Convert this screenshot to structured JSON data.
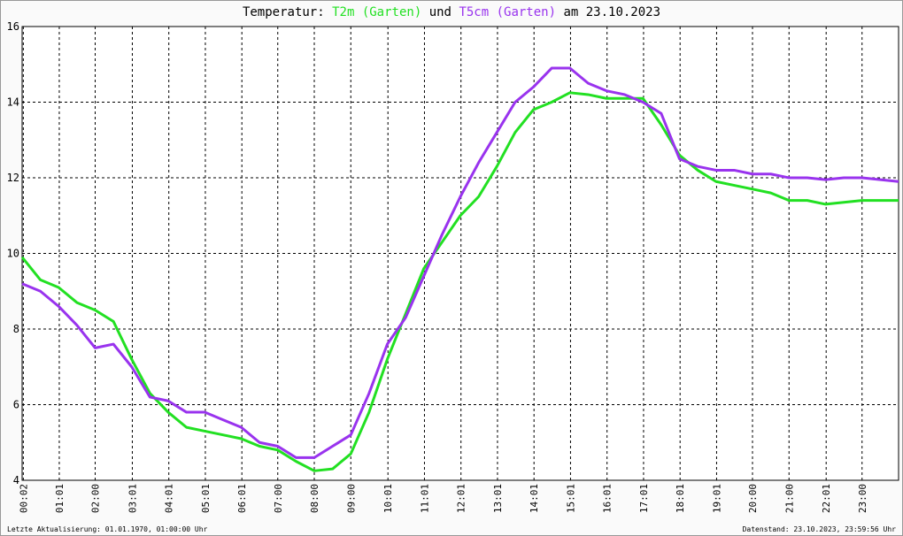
{
  "chart_data": {
    "type": "line",
    "title": {
      "prefix": "Temperatur:",
      "joiner": "und",
      "suffix": "am 23.10.2023"
    },
    "x": [
      0,
      0.5,
      1,
      1.5,
      2,
      2.5,
      3,
      3.5,
      4,
      4.5,
      5,
      5.5,
      6,
      6.5,
      7,
      7.5,
      8,
      8.5,
      9,
      9.5,
      10,
      10.5,
      11,
      11.5,
      12,
      12.5,
      13,
      13.5,
      14,
      14.5,
      15,
      15.5,
      16,
      16.5,
      17,
      17.5,
      18,
      18.5,
      19,
      19.5,
      20,
      20.5,
      21,
      21.5,
      22,
      22.5,
      23,
      23.5,
      24
    ],
    "series": [
      {
        "name": "T2m (Garten)",
        "color": "#22e022",
        "values": [
          9.9,
          9.3,
          9.1,
          8.7,
          8.5,
          8.2,
          7.2,
          6.3,
          5.8,
          5.4,
          5.3,
          5.2,
          5.1,
          4.9,
          4.8,
          4.5,
          4.25,
          4.3,
          4.7,
          5.8,
          7.2,
          8.4,
          9.6,
          10.3,
          11.0,
          11.5,
          12.3,
          13.2,
          13.8,
          14.0,
          14.25,
          14.2,
          14.1,
          14.1,
          14.1,
          13.4,
          12.6,
          12.2,
          11.9,
          11.8,
          11.7,
          11.6,
          11.4,
          11.4,
          11.3,
          11.35,
          11.4,
          11.4,
          11.4
        ]
      },
      {
        "name": "T5cm (Garten)",
        "color": "#9933ee",
        "values": [
          9.2,
          9.0,
          8.6,
          8.1,
          7.5,
          7.6,
          7.0,
          6.2,
          6.1,
          5.8,
          5.8,
          5.6,
          5.4,
          5.0,
          4.9,
          4.6,
          4.6,
          4.9,
          5.2,
          6.3,
          7.6,
          8.3,
          9.4,
          10.5,
          11.5,
          12.4,
          13.2,
          14.0,
          14.4,
          14.9,
          14.9,
          14.5,
          14.3,
          14.2,
          14.0,
          13.7,
          12.5,
          12.3,
          12.2,
          12.2,
          12.1,
          12.1,
          12.0,
          12.0,
          11.95,
          12.0,
          12.0,
          11.95,
          11.9
        ]
      }
    ],
    "xlim": [
      0,
      24
    ],
    "xticks": [
      {
        "value": 0.033,
        "label": "00:02"
      },
      {
        "value": 1.017,
        "label": "01:01"
      },
      {
        "value": 2,
        "label": "02:00"
      },
      {
        "value": 3.017,
        "label": "03:01"
      },
      {
        "value": 4.017,
        "label": "04:01"
      },
      {
        "value": 5.017,
        "label": "05:01"
      },
      {
        "value": 6.017,
        "label": "06:01"
      },
      {
        "value": 7,
        "label": "07:00"
      },
      {
        "value": 8,
        "label": "08:00"
      },
      {
        "value": 9,
        "label": "09:00"
      },
      {
        "value": 10.017,
        "label": "10:01"
      },
      {
        "value": 11.017,
        "label": "11:01"
      },
      {
        "value": 12.017,
        "label": "12:01"
      },
      {
        "value": 13.017,
        "label": "13:01"
      },
      {
        "value": 14.017,
        "label": "14:01"
      },
      {
        "value": 15.017,
        "label": "15:01"
      },
      {
        "value": 16.017,
        "label": "16:01"
      },
      {
        "value": 17.017,
        "label": "17:01"
      },
      {
        "value": 18.017,
        "label": "18:01"
      },
      {
        "value": 19.017,
        "label": "19:01"
      },
      {
        "value": 20,
        "label": "20:00"
      },
      {
        "value": 21,
        "label": "21:00"
      },
      {
        "value": 22.017,
        "label": "22:01"
      },
      {
        "value": 23,
        "label": "23:00"
      }
    ],
    "ylim": [
      4,
      16
    ],
    "yticks": [
      4,
      6,
      8,
      10,
      12,
      14,
      16
    ],
    "grid": true,
    "footer_left": "Letzte Aktualisierung: 01.01.1970, 01:00:00 Uhr",
    "footer_right": "Datenstand: 23.10.2023, 23:59:56 Uhr"
  }
}
